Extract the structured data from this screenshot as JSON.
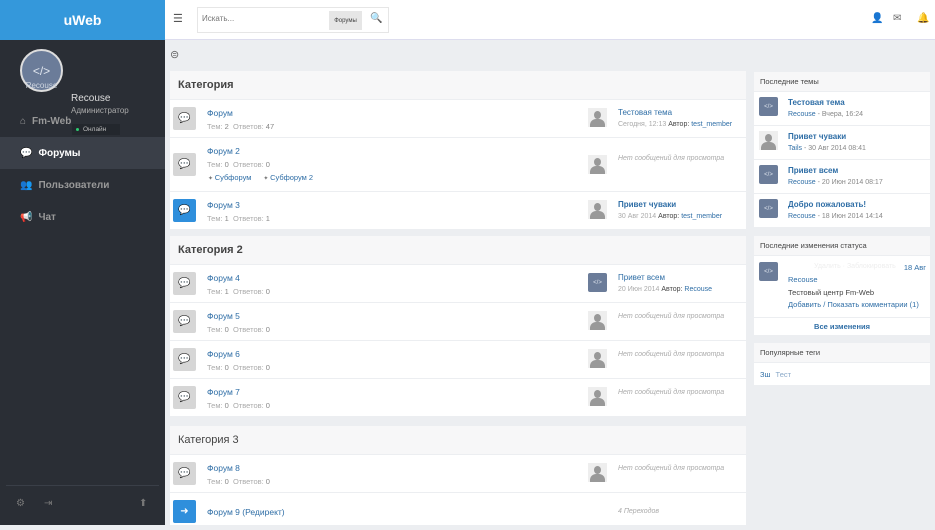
{
  "app": {
    "logo": "uWeb"
  },
  "user": {
    "name": "Recouse",
    "role": "Администратор",
    "status": "Онлайн",
    "avatar_caption": "Recouse"
  },
  "sidebar": {
    "items": [
      {
        "label": "Fm-Web",
        "icon": "home-icon"
      },
      {
        "label": "Форумы",
        "icon": "comments-icon",
        "active": true
      },
      {
        "label": "Пользователи",
        "icon": "users-icon"
      },
      {
        "label": "Чат",
        "icon": "bullhorn-icon"
      }
    ]
  },
  "topbar": {
    "search_placeholder": "Искать...",
    "search_scope": "Форумы"
  },
  "colors": {
    "brand": "#3498db",
    "sidebar": "#2a2e35",
    "link": "#2f6ea6"
  },
  "categories": [
    {
      "title": "Категория",
      "forums": [
        {
          "name": "Форум",
          "topics_label": "Тем:",
          "topics": "2",
          "replies_label": "Ответов:",
          "replies": "47",
          "last": {
            "title": "Тестовая тема",
            "date": "Сегодня, 12:13",
            "author_label": "Автор:",
            "author": "test_member"
          }
        },
        {
          "name": "Форум 2",
          "topics_label": "Тем:",
          "topics": "0",
          "replies_label": "Ответов:",
          "replies": "0",
          "subforums": [
            "Субфорум",
            "Субфорум 2"
          ],
          "none": "Нет сообщений для просмотра"
        },
        {
          "name": "Форум 3",
          "topics_label": "Тем:",
          "topics": "1",
          "replies_label": "Ответов:",
          "replies": "1",
          "last": {
            "title": "Привет чуваки",
            "date": "30 Авг 2014",
            "author_label": "Автор:",
            "author": "test_member"
          }
        }
      ]
    },
    {
      "title": "Категория 2",
      "forums": [
        {
          "name": "Форум 4",
          "topics_label": "Тем:",
          "topics": "1",
          "replies_label": "Ответов:",
          "replies": "0",
          "last": {
            "title": "Привет всем",
            "date": "20 Июн 2014",
            "author_label": "Автор:",
            "author": "Recouse"
          }
        },
        {
          "name": "Форум 5",
          "topics_label": "Тем:",
          "topics": "0",
          "replies_label": "Ответов:",
          "replies": "0",
          "none": "Нет сообщений для просмотра"
        },
        {
          "name": "Форум 6",
          "topics_label": "Тем:",
          "topics": "0",
          "replies_label": "Ответов:",
          "replies": "0",
          "none": "Нет сообщений для просмотра"
        },
        {
          "name": "Форум 7",
          "topics_label": "Тем:",
          "topics": "0",
          "replies_label": "Ответов:",
          "replies": "0",
          "none": "Нет сообщений для просмотра"
        }
      ]
    },
    {
      "title": "Категория 3",
      "forums": [
        {
          "name": "Форум 8",
          "topics_label": "Тем:",
          "topics": "0",
          "replies_label": "Ответов:",
          "replies": "0",
          "none": "Нет сообщений для просмотра"
        },
        {
          "name": "Форум 9 (Редирект)",
          "redirects": "4 Переходов"
        }
      ]
    }
  ],
  "recent_topics": {
    "title": "Последние темы",
    "items": [
      {
        "title": "Тестовая тема",
        "author": "Recouse",
        "date": " - Вчера, 16:24"
      },
      {
        "title": "Привет чуваки",
        "author": "Tails",
        "date": " - 30 Авг 2014 08:41"
      },
      {
        "title": "Привет всем",
        "author": "Recouse",
        "date": " - 20 Июн 2014 08:17"
      },
      {
        "title": "Добро пожаловать!",
        "author": "Recouse",
        "date": " - 18 Июн 2014 14:14"
      }
    ]
  },
  "status_updates": {
    "title": "Последние изменения статуса",
    "actions": "Удалить · Заблокировать",
    "date": "18 Авг",
    "author": "Recouse",
    "text": "Тестовый центр Fm-Web",
    "comments": "Добавить / Показать комментарии (1)",
    "all": "Все изменения"
  },
  "tags": {
    "title": "Популярные теги",
    "items": [
      "Зш",
      "Тест"
    ]
  }
}
